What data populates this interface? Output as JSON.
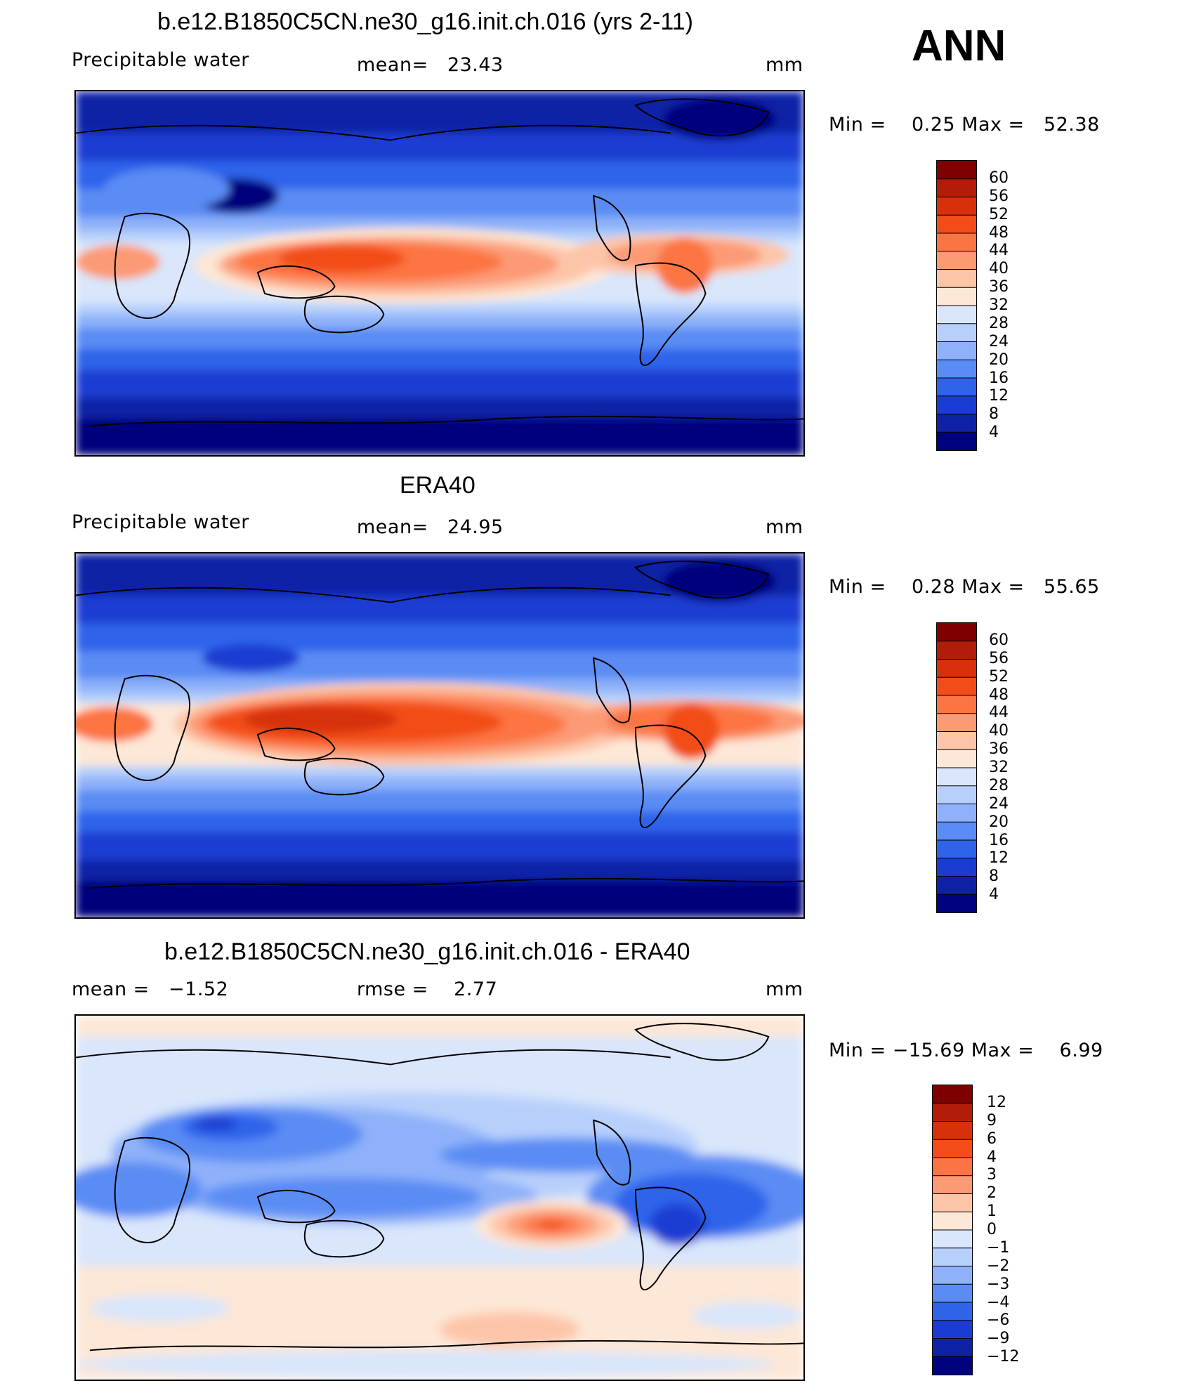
{
  "season": "ANN",
  "panels": [
    {
      "title": "b.e12.B1850C5CN.ne30_g16.init.ch.016 (yrs 2-11)",
      "variable": "Precipitable water",
      "stat1": "mean=   23.43",
      "stat2": "",
      "units": "mm",
      "minmax": "Min =    0.25 Max =   52.38",
      "colorbar": {
        "labels": [
          "60",
          "56",
          "52",
          "48",
          "44",
          "40",
          "36",
          "32",
          "28",
          "24",
          "20",
          "16",
          "12",
          "8",
          "4"
        ],
        "colors": [
          "#7f0000",
          "#b21d09",
          "#d7300a",
          "#f24d19",
          "#fc7443",
          "#fc9a74",
          "#fdc5a8",
          "#fde7d6",
          "#d9e6fb",
          "#b7d0fb",
          "#8eb1f9",
          "#5a8cf4",
          "#2f63ea",
          "#1a3cd2",
          "#0f22a5",
          "#00037d"
        ]
      }
    },
    {
      "title": "ERA40",
      "variable": "Precipitable water",
      "stat1": "mean=   24.95",
      "stat2": "",
      "units": "mm",
      "minmax": "Min =    0.28 Max =   55.65",
      "colorbar": {
        "labels": [
          "60",
          "56",
          "52",
          "48",
          "44",
          "40",
          "36",
          "32",
          "28",
          "24",
          "20",
          "16",
          "12",
          "8",
          "4"
        ],
        "colors": [
          "#7f0000",
          "#b21d09",
          "#d7300a",
          "#f24d19",
          "#fc7443",
          "#fc9a74",
          "#fdc5a8",
          "#fde7d6",
          "#d9e6fb",
          "#b7d0fb",
          "#8eb1f9",
          "#5a8cf4",
          "#2f63ea",
          "#1a3cd2",
          "#0f22a5",
          "#00037d"
        ]
      }
    },
    {
      "title": "b.e12.B1850C5CN.ne30_g16.init.ch.016 - ERA40",
      "variable": "",
      "stat1": "mean =   −1.52",
      "stat2": "rmse =    2.77",
      "units": "mm",
      "minmax": "Min = −15.69 Max =    6.99",
      "colorbar": {
        "labels": [
          "12",
          "9",
          "6",
          "4",
          "3",
          "2",
          "1",
          "0",
          "−1",
          "−2",
          "−3",
          "−4",
          "−6",
          "−9",
          "−12"
        ],
        "colors": [
          "#7f0000",
          "#b21d09",
          "#d7300a",
          "#f24d19",
          "#fc7443",
          "#fc9a74",
          "#fdc5a8",
          "#fde7d6",
          "#d9e6fb",
          "#b7d0fb",
          "#8eb1f9",
          "#5a8cf4",
          "#2f63ea",
          "#1a3cd2",
          "#0f22a5",
          "#00037d"
        ]
      }
    }
  ]
}
